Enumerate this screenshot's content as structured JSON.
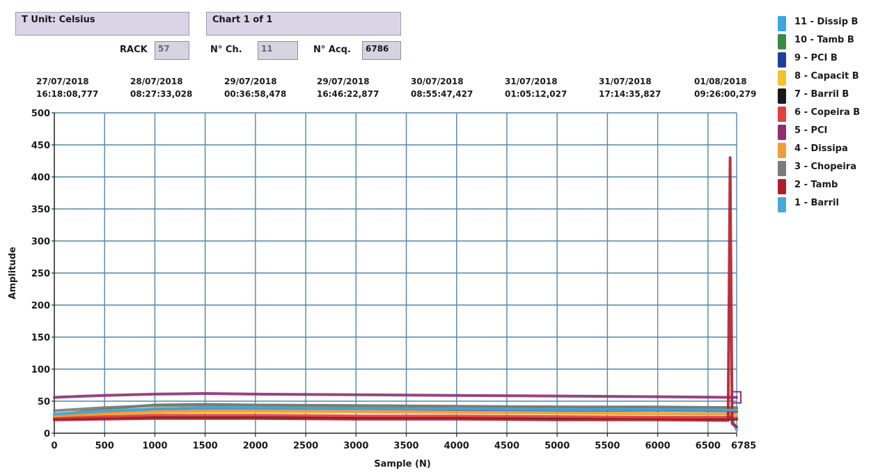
{
  "header": {
    "unit_label": "T Unit: Celsius",
    "chart_label": "Chart 1 of 1",
    "rack_label": "RACK",
    "rack_value": "57",
    "channels_label": "N° Ch.",
    "channels_value": "11",
    "acq_label": "N° Acq.",
    "acq_value": "6786"
  },
  "timestamps": [
    {
      "date": "27/07/2018",
      "time": "16:18:08,777"
    },
    {
      "date": "28/07/2018",
      "time": "08:27:33,028"
    },
    {
      "date": "29/07/2018",
      "time": "00:36:58,478"
    },
    {
      "date": "29/07/2018",
      "time": "16:46:22,877"
    },
    {
      "date": "30/07/2018",
      "time": "08:55:47,427"
    },
    {
      "date": "31/07/2018",
      "time": "01:05:12,027"
    },
    {
      "date": "31/07/2018",
      "time": "17:14:35,827"
    },
    {
      "date": "01/08/2018",
      "time": "09:26:00,279"
    }
  ],
  "legend": [
    {
      "label": "11 - Dissip B",
      "color": "#3aa7de"
    },
    {
      "label": "10 - Tamb B",
      "color": "#3a8a45"
    },
    {
      "label": "9 - PCI B",
      "color": "#1f3f9a"
    },
    {
      "label": "8 - Capacit B",
      "color": "#f2c230"
    },
    {
      "label": "7 - Barril B",
      "color": "#1a1a1a"
    },
    {
      "label": "6 - Copeira B",
      "color": "#e0403f"
    },
    {
      "label": "5 - PCI",
      "color": "#8e2e72"
    },
    {
      "label": "4 - Dissipa",
      "color": "#f39a3c"
    },
    {
      "label": "3 - Chopeira",
      "color": "#7b7b7b"
    },
    {
      "label": "2 - Tamb",
      "color": "#b01d2b"
    },
    {
      "label": "1 - Barril",
      "color": "#4aa8d8"
    }
  ],
  "chart_data": {
    "type": "line",
    "xlabel": "Sample (N)",
    "ylabel": "Amplitude",
    "xlim": [
      0,
      6785
    ],
    "ylim": [
      0,
      500
    ],
    "x_ticks": [
      0,
      500,
      1000,
      1500,
      2000,
      2500,
      3000,
      3500,
      4000,
      4500,
      5000,
      5500,
      6000,
      6500,
      6785
    ],
    "y_ticks": [
      0,
      50,
      100,
      150,
      200,
      250,
      300,
      350,
      400,
      450,
      500
    ],
    "grid": true,
    "legend_position": "right",
    "series": [
      {
        "name": "11 - Dissip B",
        "color": "#3aa7de",
        "x": [
          0,
          500,
          1000,
          1500,
          2000,
          3000,
          4000,
          5000,
          6000,
          6700,
          6785
        ],
        "y": [
          25,
          32,
          38,
          40,
          40,
          40,
          39,
          38,
          37,
          36,
          5
        ]
      },
      {
        "name": "10 - Tamb B",
        "color": "#3a8a45",
        "x": [
          0,
          500,
          1000,
          1500,
          2000,
          3000,
          4000,
          5000,
          6000,
          6700,
          6785
        ],
        "y": [
          28,
          38,
          44,
          45,
          44,
          43,
          42,
          41,
          40,
          40,
          38
        ]
      },
      {
        "name": "9 - PCI B",
        "color": "#1f3f9a",
        "x": [
          0,
          500,
          1000,
          1500,
          2000,
          3000,
          4000,
          5000,
          6000,
          6700,
          6785
        ],
        "y": [
          26,
          33,
          37,
          38,
          38,
          38,
          37,
          36,
          36,
          35,
          34
        ]
      },
      {
        "name": "8 - Capacit B",
        "color": "#f2c230",
        "x": [
          0,
          500,
          1000,
          1500,
          2000,
          3000,
          4000,
          5000,
          6000,
          6700,
          6785
        ],
        "y": [
          24,
          29,
          32,
          33,
          33,
          33,
          32,
          31,
          30,
          30,
          29
        ]
      },
      {
        "name": "7 - Barril B",
        "color": "#1a1a1a",
        "x": [
          0,
          500,
          1000,
          1500,
          2000,
          3000,
          4000,
          5000,
          6000,
          6700,
          6785
        ],
        "y": [
          22,
          24,
          25,
          25,
          25,
          24,
          24,
          23,
          23,
          22,
          22
        ]
      },
      {
        "name": "6 - Copeira B",
        "color": "#e0403f",
        "x": [
          0,
          500,
          1000,
          1500,
          2000,
          3000,
          4000,
          5000,
          6000,
          6700,
          6785
        ],
        "y": [
          23,
          26,
          28,
          28,
          28,
          27,
          27,
          26,
          25,
          25,
          24
        ]
      },
      {
        "name": "5 - PCI",
        "color": "#8e2e72",
        "x": [
          0,
          500,
          1000,
          1500,
          2000,
          3000,
          4000,
          5000,
          6000,
          6700,
          6785
        ],
        "y": [
          56,
          59,
          61,
          62,
          61,
          60,
          59,
          58,
          57,
          56,
          56
        ]
      },
      {
        "name": "4 - Dissipa",
        "color": "#f39a3c",
        "x": [
          0,
          500,
          1000,
          1500,
          2000,
          3000,
          4000,
          5000,
          6000,
          6700,
          6785
        ],
        "y": [
          27,
          31,
          34,
          35,
          35,
          34,
          33,
          32,
          31,
          30,
          30
        ]
      },
      {
        "name": "3 - Chopeira",
        "color": "#7b7b7b",
        "x": [
          0,
          500,
          1000,
          1500,
          2000,
          3000,
          4000,
          5000,
          6000,
          6700,
          6785
        ],
        "y": [
          35,
          40,
          43,
          44,
          44,
          43,
          42,
          41,
          41,
          40,
          40
        ]
      },
      {
        "name": "2 - Tamb",
        "color": "#b01d2b",
        "x": [
          0,
          500,
          1000,
          1500,
          2000,
          3000,
          4000,
          5000,
          6000,
          6700,
          6720,
          6740,
          6785
        ],
        "y": [
          21,
          22,
          23,
          23,
          23,
          22,
          22,
          21,
          21,
          20,
          430,
          15,
          10
        ]
      },
      {
        "name": "1 - Barril",
        "color": "#4aa8d8",
        "x": [
          0,
          500,
          1000,
          1500,
          2000,
          3000,
          4000,
          5000,
          6000,
          6700,
          6785
        ],
        "y": [
          30,
          35,
          38,
          39,
          39,
          38,
          38,
          37,
          37,
          36,
          36
        ]
      }
    ]
  }
}
